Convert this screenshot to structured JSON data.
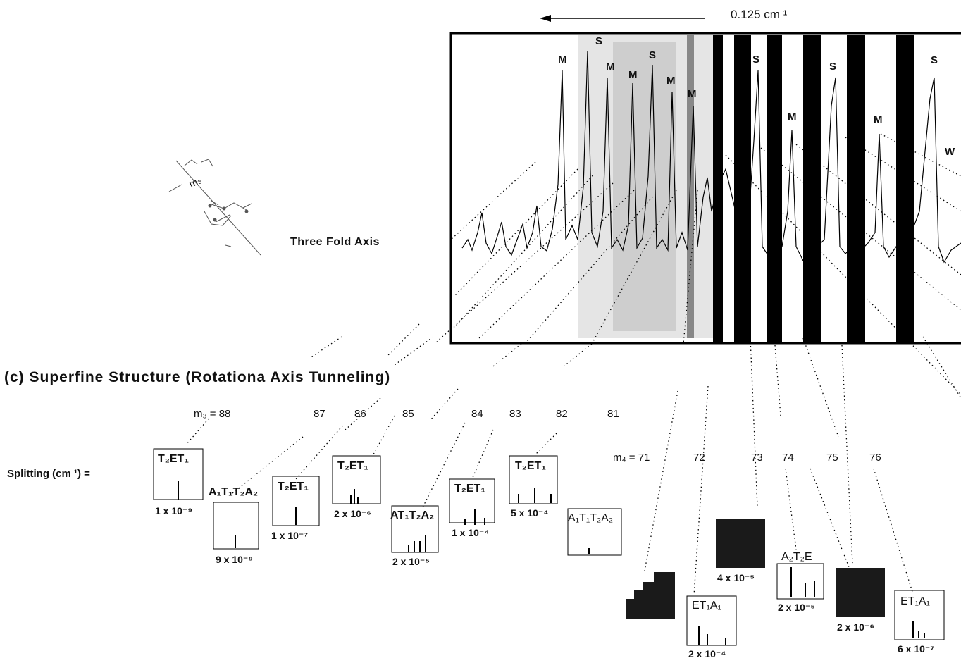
{
  "scale_label": "0.125 cm ¹",
  "axis_label": "Three Fold Axis",
  "molecule_label": "m₃",
  "title": "(c) Superfine Structure (Rotationa  Axis Tunneling)",
  "m3_prefix": "m₃ = 88",
  "m3_values": [
    "87",
    "86",
    "85",
    "84",
    "83",
    "82",
    "81"
  ],
  "m4_prefix": "m₄ = 71",
  "m4_values": [
    "72",
    "73",
    "74",
    "75",
    "76"
  ],
  "splitting_label": "Splitting (cm ¹) =",
  "peak_labels": [
    "M",
    "S",
    "M",
    "M",
    "S",
    "M",
    "M",
    "S",
    "M",
    "S",
    "M",
    "S",
    "W"
  ],
  "clusters": [
    {
      "symmetry": "T₂ET₁",
      "splitting": "1 x 10⁻⁹"
    },
    {
      "symmetry": "A₁T₁T₂A₂",
      "splitting": "9 x 10⁻⁹"
    },
    {
      "symmetry": "T₂ET₁",
      "splitting": "1 x 10⁻⁷"
    },
    {
      "symmetry": "T₂ET₁",
      "splitting": "2 x 10⁻⁶"
    },
    {
      "symmetry": "AT₁T₂A₂",
      "splitting": "2 x 10⁻⁵"
    },
    {
      "symmetry": "T₂ET₁",
      "splitting": "1 x 10⁻⁴"
    },
    {
      "symmetry": "T₂ET₁",
      "splitting": "5 x 10⁻⁴"
    },
    {
      "symmetry": "A₁T₁T₂A₂",
      "splitting": ""
    },
    {
      "symmetry": "ET₁A₁",
      "splitting": "2 x 10⁻⁴"
    },
    {
      "symmetry": "",
      "splitting": "4 x 10⁻⁵"
    },
    {
      "symmetry": "A₂T₂E",
      "splitting": "2 x 10⁻⁵"
    },
    {
      "symmetry": "",
      "splitting": "2 x 10⁻⁶"
    },
    {
      "symmetry": "ET₁A₁",
      "splitting": "6 x 10⁻⁷"
    }
  ]
}
